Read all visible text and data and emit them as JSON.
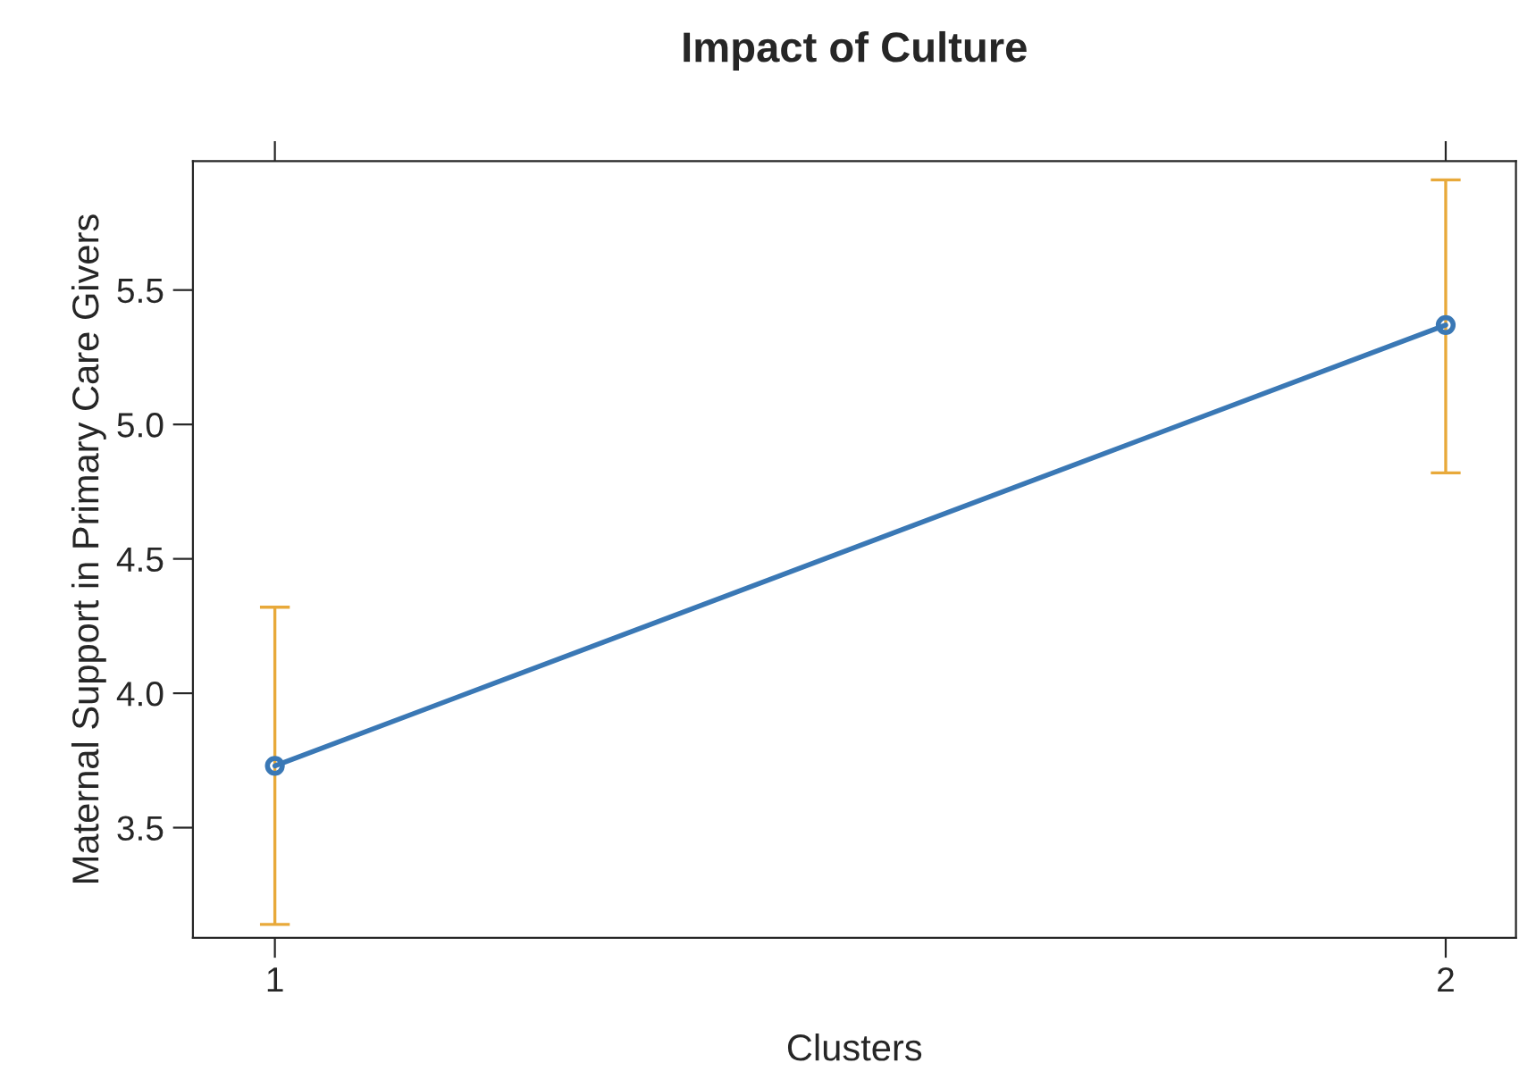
{
  "chart_data": {
    "type": "line",
    "title": "Impact of Culture",
    "xlabel": "Clusters",
    "ylabel": "Maternal Support in Primary Care Givers",
    "x": [
      1,
      2
    ],
    "series": [
      {
        "color": "#3a78b5",
        "values": [
          3.73,
          5.37
        ],
        "errors": [
          [
            3.14,
            4.32
          ],
          [
            4.82,
            5.91
          ]
        ]
      }
    ],
    "xlim": [
      0.93,
      2.06
    ],
    "xticks": [
      1,
      2
    ],
    "ylim": [
      3.09,
      5.98
    ],
    "yticks": [
      3.5,
      {
        "value": 4,
        "label": "4.0"
      },
      4.5,
      {
        "value": 5,
        "label": "5.0"
      },
      5.5
    ],
    "grid": false,
    "marker": "circle",
    "line_style": "solid"
  }
}
